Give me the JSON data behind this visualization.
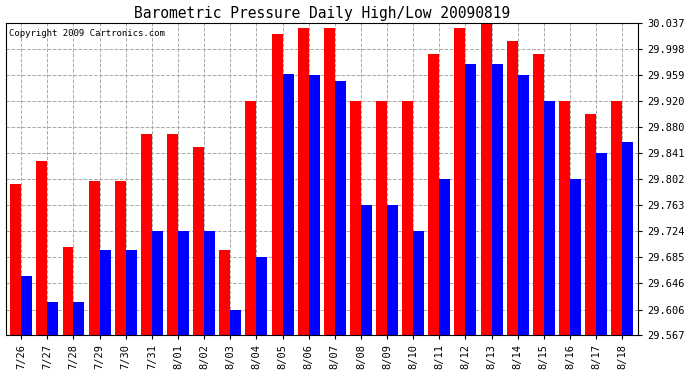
{
  "title": "Barometric Pressure Daily High/Low 20090819",
  "copyright": "Copyright 2009 Cartronics.com",
  "categories": [
    "7/26",
    "7/27",
    "7/28",
    "7/29",
    "7/30",
    "7/31",
    "8/01",
    "8/02",
    "8/03",
    "8/04",
    "8/05",
    "8/06",
    "8/07",
    "8/08",
    "8/09",
    "8/10",
    "8/11",
    "8/12",
    "8/13",
    "8/14",
    "8/15",
    "8/16",
    "8/17",
    "8/18"
  ],
  "highs": [
    29.795,
    29.83,
    29.7,
    29.8,
    29.8,
    29.87,
    29.87,
    29.85,
    29.695,
    29.92,
    30.02,
    30.03,
    30.03,
    29.92,
    29.92,
    29.92,
    29.99,
    30.03,
    30.035,
    30.01,
    29.99,
    29.92,
    29.9,
    29.92
  ],
  "lows": [
    29.656,
    29.617,
    29.617,
    29.695,
    29.695,
    29.724,
    29.724,
    29.724,
    29.606,
    29.685,
    29.96,
    29.959,
    29.95,
    29.763,
    29.763,
    29.724,
    29.802,
    29.975,
    29.975,
    29.959,
    29.92,
    29.802,
    29.841,
    29.858
  ],
  "high_color": "#ff0000",
  "low_color": "#0000ff",
  "bg_color": "#ffffff",
  "grid_color": "#aaaaaa",
  "ylim_min": 29.567,
  "ylim_max": 30.037,
  "yticks": [
    29.567,
    29.606,
    29.646,
    29.685,
    29.724,
    29.763,
    29.802,
    29.841,
    29.88,
    29.92,
    29.959,
    29.998,
    30.037
  ],
  "bar_width": 0.42
}
